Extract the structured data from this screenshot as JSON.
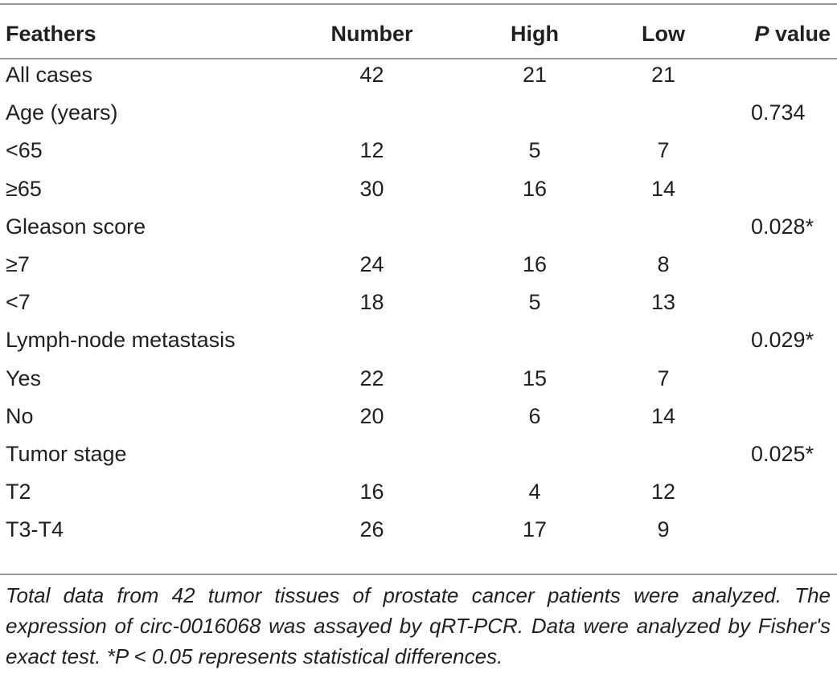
{
  "table": {
    "headers": {
      "feathers": "Feathers",
      "number": "Number",
      "high": "High",
      "low": "Low",
      "p_letter": "P",
      "p_word": " value"
    },
    "rows": [
      {
        "label": "All cases",
        "number": "42",
        "high": "21",
        "low": "21",
        "p": ""
      },
      {
        "label": "Age (years)",
        "number": "",
        "high": "",
        "low": "",
        "p": "0.734"
      },
      {
        "label": "<65",
        "number": "12",
        "high": "5",
        "low": "7",
        "p": ""
      },
      {
        "label": "≥65",
        "number": "30",
        "high": "16",
        "low": "14",
        "p": ""
      },
      {
        "label": "Gleason score",
        "number": "",
        "high": "",
        "low": "",
        "p": "0.028*"
      },
      {
        "label": "≥7",
        "number": "24",
        "high": "16",
        "low": "8",
        "p": ""
      },
      {
        "label": "<7",
        "number": "18",
        "high": "5",
        "low": "13",
        "p": ""
      },
      {
        "label": "Lymph-node metastasis",
        "number": "",
        "high": "",
        "low": "",
        "p": "0.029*"
      },
      {
        "label": "Yes",
        "number": "22",
        "high": "15",
        "low": "7",
        "p": ""
      },
      {
        "label": "No",
        "number": "20",
        "high": "6",
        "low": "14",
        "p": ""
      },
      {
        "label": "Tumor stage",
        "number": "",
        "high": "",
        "low": "",
        "p": "0.025*"
      },
      {
        "label": "T2",
        "number": "16",
        "high": "4",
        "low": "12",
        "p": ""
      },
      {
        "label": "T3-T4",
        "number": "26",
        "high": "17",
        "low": "9",
        "p": ""
      }
    ]
  },
  "footnote": "Total data from 42 tumor tissues of prostate cancer patients were analyzed. The expression of circ-0016068 was assayed by qRT-PCR. Data were analyzed by Fisher's exact test. *P < 0.05 represents statistical differences."
}
